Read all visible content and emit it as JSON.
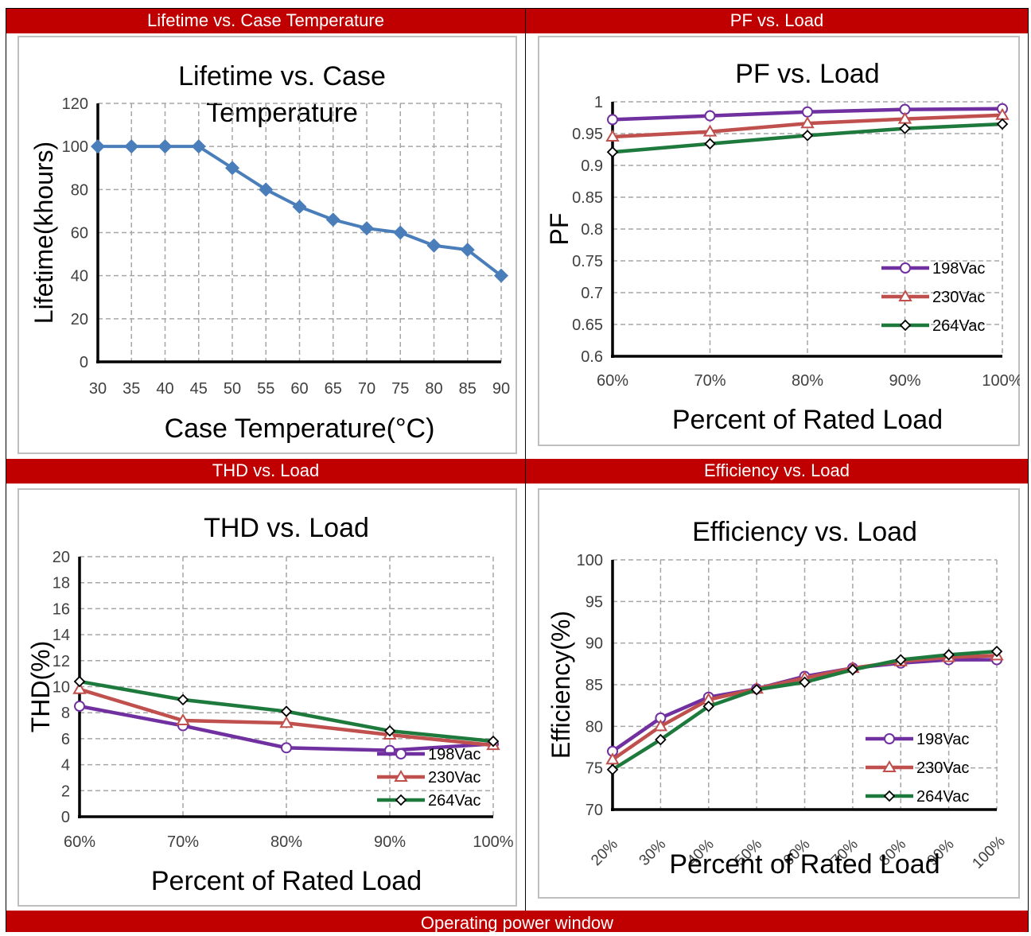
{
  "headers": {
    "top_left": "Lifetime vs. Case Temperature",
    "top_right": "PF vs. Load",
    "bottom_left": "THD vs. Load",
    "bottom_right": "Efficiency vs. Load",
    "footer": "Operating power window"
  },
  "colors": {
    "header_bg": "#c00000",
    "header_text": "#ffffff",
    "lifetime_line": "#4a7ebb",
    "s198": "#7030a0",
    "s230": "#c0504d",
    "s264": "#1e7a3c"
  },
  "chart_data": [
    {
      "type": "line",
      "title": "Lifetime vs. Case Temperature",
      "title_lines": [
        "Lifetime vs. Case",
        "Temperature"
      ],
      "xlabel": "Case Temperature(°C)",
      "ylabel": "Lifetime(khours)",
      "x": [
        30,
        35,
        40,
        45,
        50,
        55,
        60,
        65,
        70,
        75,
        80,
        85,
        90
      ],
      "xticks": [
        "30",
        "35",
        "40",
        "45",
        "50",
        "55",
        "60",
        "65",
        "70",
        "75",
        "80",
        "85",
        "90"
      ],
      "yticks": [
        "0",
        "20",
        "40",
        "60",
        "80",
        "100",
        "120"
      ],
      "ylim": [
        0,
        120
      ],
      "grid": true,
      "series": [
        {
          "values": [
            100,
            100,
            100,
            100,
            90,
            80,
            72,
            66,
            62,
            60,
            54,
            52,
            40
          ]
        }
      ]
    },
    {
      "type": "line",
      "title": "PF vs. Load",
      "xlabel": "Percent of Rated Load",
      "ylabel": "PF",
      "categories": [
        "60%",
        "70%",
        "80%",
        "90%",
        "100%"
      ],
      "yticks": [
        "0.6",
        "0.65",
        "0.7",
        "0.75",
        "0.8",
        "0.85",
        "0.9",
        "0.95",
        "1"
      ],
      "ylim": [
        0.6,
        1.0
      ],
      "grid": true,
      "legend": "right",
      "series": [
        {
          "name": "198Vac",
          "values": [
            0.972,
            0.978,
            0.984,
            0.988,
            0.989
          ]
        },
        {
          "name": "230Vac",
          "values": [
            0.945,
            0.953,
            0.966,
            0.973,
            0.979
          ]
        },
        {
          "name": "264Vac",
          "values": [
            0.921,
            0.934,
            0.947,
            0.958,
            0.965
          ]
        }
      ]
    },
    {
      "type": "line",
      "title": "THD vs. Load",
      "xlabel": "Percent of Rated Load",
      "ylabel": "THD(%)",
      "categories": [
        "60%",
        "70%",
        "80%",
        "90%",
        "100%"
      ],
      "yticks": [
        "0",
        "2",
        "4",
        "6",
        "8",
        "10",
        "12",
        "14",
        "16",
        "18",
        "20"
      ],
      "ylim": [
        0,
        20
      ],
      "grid": true,
      "legend": "bottom-right",
      "series": [
        {
          "name": "198Vac",
          "values": [
            8.5,
            7.0,
            5.3,
            5.1,
            5.6
          ]
        },
        {
          "name": "230Vac",
          "values": [
            9.8,
            7.4,
            7.2,
            6.3,
            5.5
          ]
        },
        {
          "name": "264Vac",
          "values": [
            10.4,
            9.0,
            8.1,
            6.6,
            5.8
          ]
        }
      ]
    },
    {
      "type": "line",
      "title": "Efficiency vs. Load",
      "xlabel": "Percent of Rated Load",
      "ylabel": "Efficiency(%)",
      "categories": [
        "20%",
        "30%",
        "40%",
        "50%",
        "60%",
        "70%",
        "80%",
        "90%",
        "100%"
      ],
      "yticks": [
        "70",
        "75",
        "80",
        "85",
        "90",
        "95",
        "100"
      ],
      "ylim": [
        70,
        100
      ],
      "grid": true,
      "legend": "right",
      "series": [
        {
          "name": "198Vac",
          "values": [
            77.0,
            81.0,
            83.5,
            84.5,
            86.0,
            87.0,
            87.6,
            88.0,
            88.0
          ]
        },
        {
          "name": "230Vac",
          "values": [
            76.0,
            80.0,
            83.2,
            84.5,
            85.8,
            87.0,
            87.8,
            88.3,
            88.5
          ]
        },
        {
          "name": "264Vac",
          "values": [
            74.8,
            78.4,
            82.4,
            84.4,
            85.3,
            86.8,
            88.0,
            88.6,
            89.0
          ]
        }
      ]
    }
  ]
}
